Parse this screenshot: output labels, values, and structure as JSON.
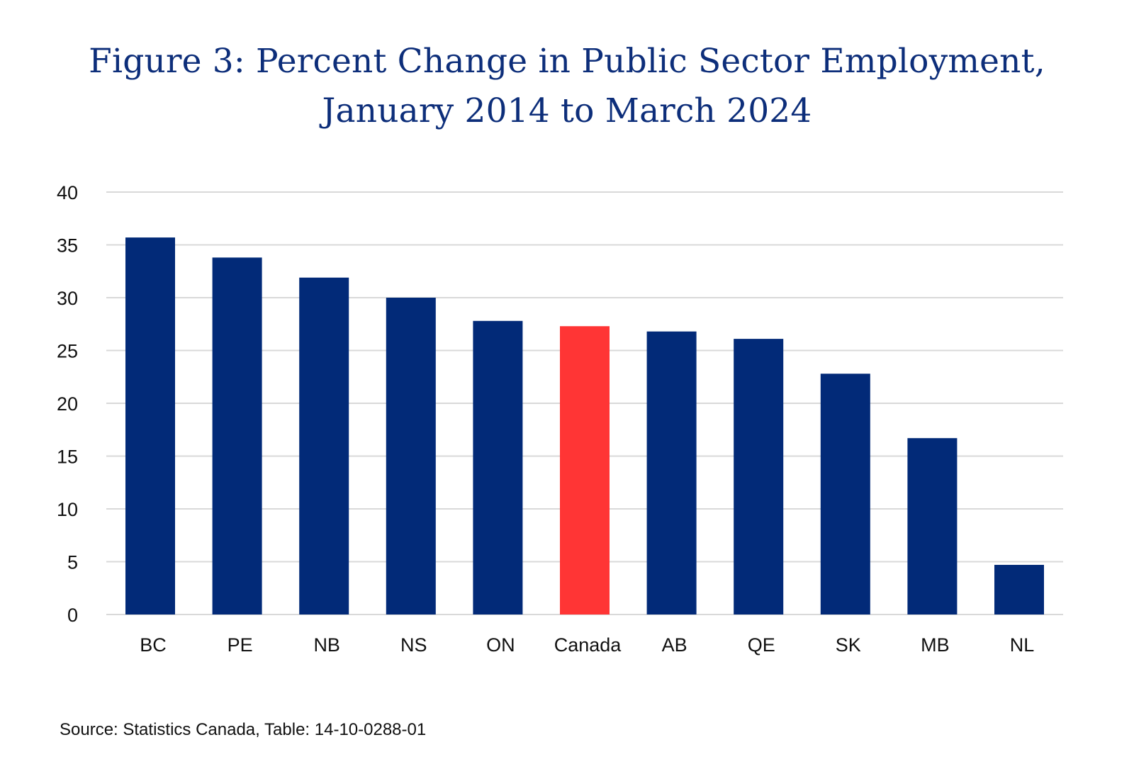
{
  "chart_data": {
    "type": "bar",
    "title_line1": "Figure 3: Percent Change in Public Sector Employment,",
    "title_line2": "January 2014 to March 2024",
    "categories": [
      "BC",
      "PE",
      "NB",
      "NS",
      "ON",
      "Canada",
      "AB",
      "QE",
      "SK",
      "MB",
      "NL"
    ],
    "values": [
      35.7,
      33.8,
      31.9,
      30.0,
      27.8,
      27.3,
      26.8,
      26.1,
      22.8,
      16.7,
      4.7
    ],
    "highlight_category": "Canada",
    "ylim": [
      0,
      40
    ],
    "yticks": [
      0,
      5,
      10,
      15,
      20,
      25,
      30,
      35,
      40
    ],
    "grid": true,
    "xlabel": "",
    "ylabel": "",
    "colors": {
      "bar": "#022a78",
      "highlight": "#ff3535",
      "grid": "#d9d9d9",
      "title": "#0d2e7a"
    }
  },
  "source": "Source: Statistics Canada, Table: 14-10-0288-01"
}
